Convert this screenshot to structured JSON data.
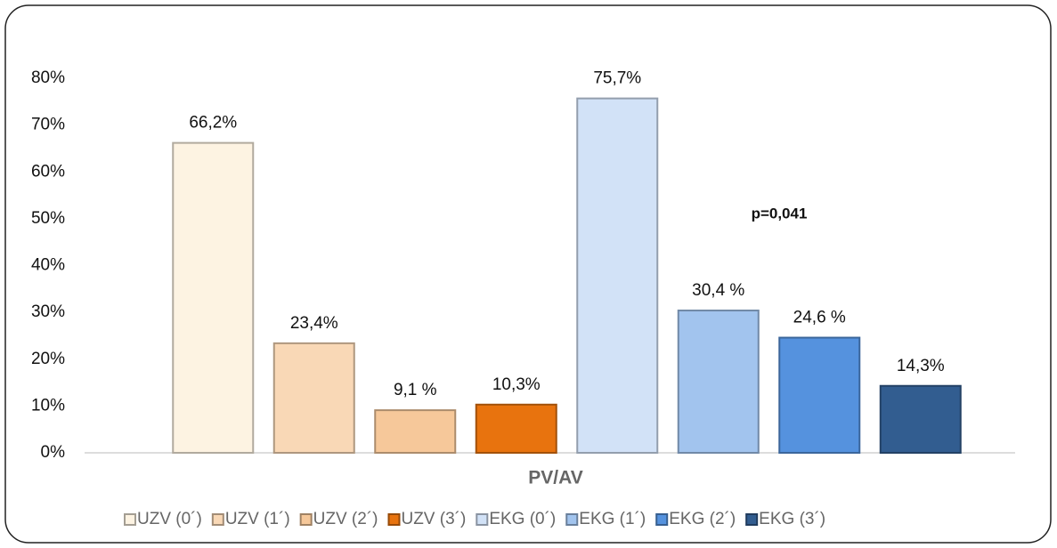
{
  "chart_data": {
    "type": "bar",
    "categories": [
      "PV/AV"
    ],
    "series": [
      {
        "name": "UZV (0´)",
        "color": "#fdf3e2",
        "values": [
          66.2
        ],
        "value_labels": [
          "66,2%"
        ]
      },
      {
        "name": "UZV (1´)",
        "color": "#f9d8b6",
        "values": [
          23.4
        ],
        "value_labels": [
          "23,4%"
        ]
      },
      {
        "name": "UZV (2´)",
        "color": "#f6c89a",
        "values": [
          9.1
        ],
        "value_labels": [
          "9,1 %"
        ]
      },
      {
        "name": "UZV (3´)",
        "color": "#e8730e",
        "values": [
          10.3
        ],
        "value_labels": [
          "10,3%"
        ]
      },
      {
        "name": "EKG (0´)",
        "color": "#d2e2f7",
        "values": [
          75.7
        ],
        "value_labels": [
          "75,7%"
        ]
      },
      {
        "name": "EKG (1´)",
        "color": "#a2c4ee",
        "values": [
          30.4
        ],
        "value_labels": [
          "30,4 %"
        ]
      },
      {
        "name": "EKG (2´)",
        "color": "#5592de",
        "values": [
          24.6
        ],
        "value_labels": [
          "24,6 %"
        ]
      },
      {
        "name": "EKG (3´)",
        "color": "#325d90",
        "values": [
          14.3
        ],
        "value_labels": [
          "14,3%"
        ]
      }
    ],
    "annotations": [
      "p=0,041"
    ],
    "ylim": [
      0,
      80
    ],
    "yticks": [
      {
        "value": 0,
        "label": "0%"
      },
      {
        "value": 10,
        "label": "10%"
      },
      {
        "value": 20,
        "label": "20%"
      },
      {
        "value": 30,
        "label": "30%"
      },
      {
        "value": 40,
        "label": "40%"
      },
      {
        "value": 50,
        "label": "50%"
      },
      {
        "value": 60,
        "label": "60%"
      },
      {
        "value": 70,
        "label": "70%"
      },
      {
        "value": 80,
        "label": "80%"
      }
    ],
    "grid": false,
    "legend": "bottom"
  }
}
